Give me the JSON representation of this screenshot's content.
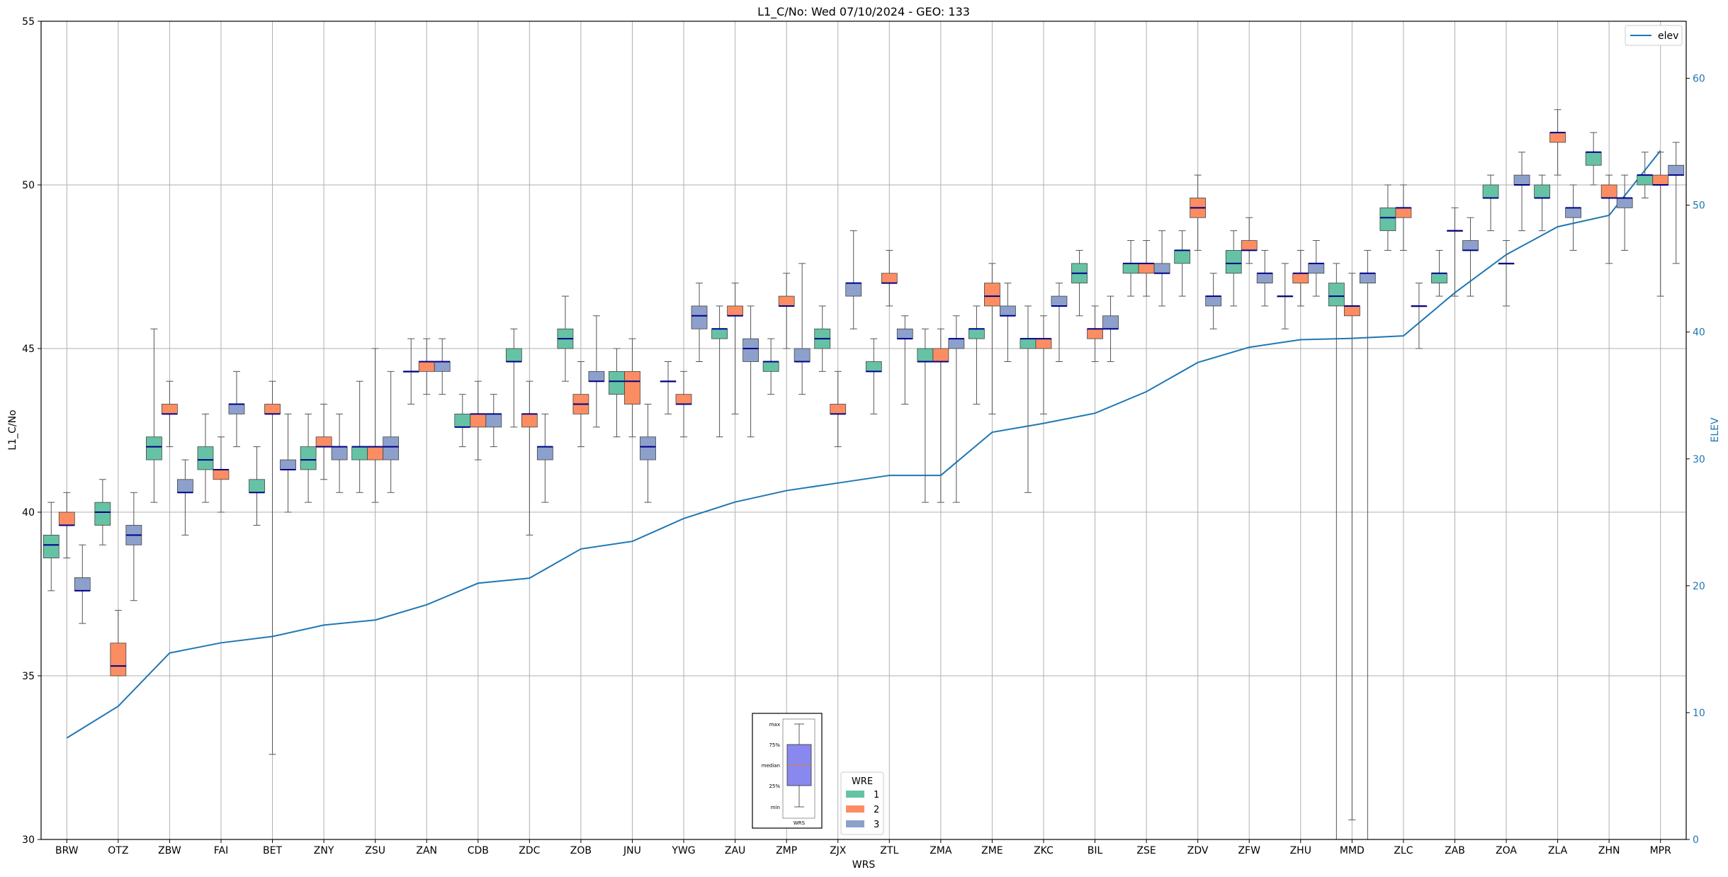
{
  "chart_data": {
    "type": "box",
    "title": "L1_C/No: Wed 07/10/2024 - GEO: 133",
    "xlabel": "WRS",
    "ylabel": "L1_C/No",
    "y2label": "ELEV",
    "ylim": [
      30,
      55
    ],
    "y2lim": [
      0,
      64.5
    ],
    "yticks": [
      30,
      35,
      40,
      45,
      50,
      55
    ],
    "y2ticks": [
      0,
      10,
      20,
      30,
      40,
      50,
      60
    ],
    "grid": true,
    "categories": [
      "BRW",
      "OTZ",
      "ZBW",
      "FAI",
      "BET",
      "ZNY",
      "ZSU",
      "ZAN",
      "CDB",
      "ZDC",
      "ZOB",
      "JNU",
      "YWG",
      "ZAU",
      "ZMP",
      "ZJX",
      "ZTL",
      "ZMA",
      "ZME",
      "ZKC",
      "BIL",
      "ZSE",
      "ZDV",
      "ZFW",
      "ZHU",
      "MMD",
      "ZLC",
      "ZAB",
      "ZOA",
      "ZLA",
      "ZHN",
      "MPR"
    ],
    "box_legend": {
      "title": "WRE",
      "entries": [
        {
          "label": "1",
          "color": "#66c2a5"
        },
        {
          "label": "2",
          "color": "#fc8d62"
        },
        {
          "label": "3",
          "color": "#8da0cb"
        }
      ]
    },
    "line_legend": {
      "label": "elev",
      "color": "#1f77b4"
    },
    "key_box": {
      "labels": [
        "max",
        "75%",
        "median",
        "25%",
        "min"
      ],
      "xlabel": "WRS",
      "color": "#8888ee"
    },
    "series": [
      {
        "name": "1",
        "boxes": [
          {
            "cat": "BRW",
            "min": 37.6,
            "q1": 38.6,
            "med": 39.0,
            "q3": 39.3,
            "max": 40.3
          },
          {
            "cat": "OTZ",
            "min": 39.0,
            "q1": 39.6,
            "med": 40.0,
            "q3": 40.3,
            "max": 41.0
          },
          {
            "cat": "ZBW",
            "min": 40.3,
            "q1": 41.6,
            "med": 42.0,
            "q3": 42.3,
            "max": 45.6
          },
          {
            "cat": "FAI",
            "min": 40.3,
            "q1": 41.3,
            "med": 41.6,
            "q3": 42.0,
            "max": 43.0
          },
          {
            "cat": "BET",
            "min": 39.6,
            "q1": 40.6,
            "med": 40.6,
            "q3": 41.0,
            "max": 42.0
          },
          {
            "cat": "ZNY",
            "min": 40.3,
            "q1": 41.3,
            "med": 41.6,
            "q3": 42.0,
            "max": 43.0
          },
          {
            "cat": "ZSU",
            "min": 40.6,
            "q1": 41.6,
            "med": 42.0,
            "q3": 42.0,
            "max": 44.0
          },
          {
            "cat": "ZAN",
            "min": 43.3,
            "q1": 44.3,
            "med": 44.3,
            "q3": 44.3,
            "max": 45.3
          },
          {
            "cat": "CDB",
            "min": 42.0,
            "q1": 42.6,
            "med": 42.6,
            "q3": 43.0,
            "max": 43.6
          },
          {
            "cat": "ZDC",
            "min": 42.6,
            "q1": 44.6,
            "med": 44.6,
            "q3": 45.0,
            "max": 45.6
          },
          {
            "cat": "ZOB",
            "min": 44.0,
            "q1": 45.0,
            "med": 45.3,
            "q3": 45.6,
            "max": 46.6
          },
          {
            "cat": "JNU",
            "min": 42.3,
            "q1": 43.6,
            "med": 44.0,
            "q3": 44.3,
            "max": 45.0
          },
          {
            "cat": "YWG",
            "min": 43.0,
            "q1": 44.0,
            "med": 44.0,
            "q3": 44.0,
            "max": 44.6
          },
          {
            "cat": "ZAU",
            "min": 42.3,
            "q1": 45.3,
            "med": 45.6,
            "q3": 45.6,
            "max": 46.3
          },
          {
            "cat": "ZMP",
            "min": 43.6,
            "q1": 44.3,
            "med": 44.6,
            "q3": 44.6,
            "max": 45.3
          },
          {
            "cat": "ZJX",
            "min": 44.3,
            "q1": 45.0,
            "med": 45.3,
            "q3": 45.6,
            "max": 46.3
          },
          {
            "cat": "ZTL",
            "min": 43.0,
            "q1": 44.3,
            "med": 44.3,
            "q3": 44.6,
            "max": 45.3
          },
          {
            "cat": "ZMA",
            "min": 40.3,
            "q1": 44.6,
            "med": 44.6,
            "q3": 45.0,
            "max": 45.6
          },
          {
            "cat": "ZME",
            "min": 43.3,
            "q1": 45.3,
            "med": 45.6,
            "q3": 45.6,
            "max": 46.3
          },
          {
            "cat": "ZKC",
            "min": 40.6,
            "q1": 45.0,
            "med": 45.3,
            "q3": 45.3,
            "max": 46.3
          },
          {
            "cat": "BIL",
            "min": 46.0,
            "q1": 47.0,
            "med": 47.3,
            "q3": 47.6,
            "max": 48.0
          },
          {
            "cat": "ZSE",
            "min": 46.6,
            "q1": 47.3,
            "med": 47.6,
            "q3": 47.6,
            "max": 48.3
          },
          {
            "cat": "ZDV",
            "min": 46.6,
            "q1": 47.6,
            "med": 48.0,
            "q3": 48.0,
            "max": 48.6
          },
          {
            "cat": "ZFW",
            "min": 46.3,
            "q1": 47.3,
            "med": 47.6,
            "q3": 48.0,
            "max": 48.6
          },
          {
            "cat": "ZHU",
            "min": 45.6,
            "q1": 46.6,
            "med": 46.6,
            "q3": 46.6,
            "max": 47.6
          },
          {
            "cat": "MMD",
            "min": 30.0,
            "q1": 46.3,
            "med": 46.6,
            "q3": 47.0,
            "max": 47.6
          },
          {
            "cat": "ZLC",
            "min": 48.0,
            "q1": 48.6,
            "med": 49.0,
            "q3": 49.3,
            "max": 50.0
          },
          {
            "cat": "ZAB",
            "min": 46.6,
            "q1": 47.0,
            "med": 47.3,
            "q3": 47.3,
            "max": 48.0
          },
          {
            "cat": "ZOA",
            "min": 48.6,
            "q1": 49.6,
            "med": 49.6,
            "q3": 50.0,
            "max": 50.3
          },
          {
            "cat": "ZLA",
            "min": 48.6,
            "q1": 49.6,
            "med": 49.6,
            "q3": 50.0,
            "max": 50.3
          },
          {
            "cat": "ZHN",
            "min": 50.0,
            "q1": 50.6,
            "med": 51.0,
            "q3": 51.0,
            "max": 51.6
          },
          {
            "cat": "MPR",
            "min": 49.6,
            "q1": 50.0,
            "med": 50.3,
            "q3": 50.3,
            "max": 51.0
          }
        ]
      },
      {
        "name": "2",
        "boxes": [
          {
            "cat": "BRW",
            "min": 38.6,
            "q1": 39.6,
            "med": 39.6,
            "q3": 40.0,
            "max": 40.6
          },
          {
            "cat": "OTZ",
            "min": 35.0,
            "q1": 35.0,
            "med": 35.3,
            "q3": 36.0,
            "max": 37.0
          },
          {
            "cat": "ZBW",
            "min": 42.0,
            "q1": 43.0,
            "med": 43.0,
            "q3": 43.3,
            "max": 44.0
          },
          {
            "cat": "FAI",
            "min": 40.0,
            "q1": 41.0,
            "med": 41.3,
            "q3": 41.3,
            "max": 42.3
          },
          {
            "cat": "BET",
            "min": 32.6,
            "q1": 43.0,
            "med": 43.0,
            "q3": 43.3,
            "max": 44.0
          },
          {
            "cat": "ZNY",
            "min": 41.0,
            "q1": 42.0,
            "med": 42.0,
            "q3": 42.3,
            "max": 43.3
          },
          {
            "cat": "ZSU",
            "min": 40.3,
            "q1": 41.6,
            "med": 42.0,
            "q3": 42.0,
            "max": 45.0
          },
          {
            "cat": "ZAN",
            "min": 43.6,
            "q1": 44.3,
            "med": 44.6,
            "q3": 44.6,
            "max": 45.3
          },
          {
            "cat": "CDB",
            "min": 41.6,
            "q1": 42.6,
            "med": 43.0,
            "q3": 43.0,
            "max": 44.0
          },
          {
            "cat": "ZDC",
            "min": 39.3,
            "q1": 42.6,
            "med": 43.0,
            "q3": 43.0,
            "max": 44.0
          },
          {
            "cat": "ZOB",
            "min": 42.0,
            "q1": 43.0,
            "med": 43.3,
            "q3": 43.6,
            "max": 44.6
          },
          {
            "cat": "JNU",
            "min": 42.3,
            "q1": 43.3,
            "med": 44.0,
            "q3": 44.3,
            "max": 45.3
          },
          {
            "cat": "YWG",
            "min": 42.3,
            "q1": 43.3,
            "med": 43.3,
            "q3": 43.6,
            "max": 44.3
          },
          {
            "cat": "ZAU",
            "min": 43.0,
            "q1": 46.0,
            "med": 46.0,
            "q3": 46.3,
            "max": 47.0
          },
          {
            "cat": "ZMP",
            "min": 45.0,
            "q1": 46.3,
            "med": 46.3,
            "q3": 46.6,
            "max": 47.3
          },
          {
            "cat": "ZJX",
            "min": 42.0,
            "q1": 43.0,
            "med": 43.0,
            "q3": 43.3,
            "max": 44.3
          },
          {
            "cat": "ZTL",
            "min": 46.3,
            "q1": 47.0,
            "med": 47.0,
            "q3": 47.3,
            "max": 48.0
          },
          {
            "cat": "ZMA",
            "min": 40.3,
            "q1": 44.6,
            "med": 44.6,
            "q3": 45.0,
            "max": 45.6
          },
          {
            "cat": "ZME",
            "min": 43.0,
            "q1": 46.3,
            "med": 46.6,
            "q3": 47.0,
            "max": 47.6
          },
          {
            "cat": "ZKC",
            "min": 43.0,
            "q1": 45.0,
            "med": 45.3,
            "q3": 45.3,
            "max": 46.0
          },
          {
            "cat": "BIL",
            "min": 44.6,
            "q1": 45.3,
            "med": 45.6,
            "q3": 45.6,
            "max": 46.3
          },
          {
            "cat": "ZSE",
            "min": 46.6,
            "q1": 47.3,
            "med": 47.6,
            "q3": 47.6,
            "max": 48.3
          },
          {
            "cat": "ZDV",
            "min": 48.0,
            "q1": 49.0,
            "med": 49.3,
            "q3": 49.6,
            "max": 50.3
          },
          {
            "cat": "ZFW",
            "min": 47.6,
            "q1": 48.0,
            "med": 48.0,
            "q3": 48.3,
            "max": 49.0
          },
          {
            "cat": "ZHU",
            "min": 46.3,
            "q1": 47.0,
            "med": 47.3,
            "q3": 47.3,
            "max": 48.0
          },
          {
            "cat": "MMD",
            "min": 30.6,
            "q1": 46.0,
            "med": 46.3,
            "q3": 46.3,
            "max": 47.3
          },
          {
            "cat": "ZLC",
            "min": 48.0,
            "q1": 49.0,
            "med": 49.3,
            "q3": 49.3,
            "max": 50.0
          },
          {
            "cat": "ZAB",
            "min": 46.6,
            "q1": 48.6,
            "med": 48.6,
            "q3": 48.6,
            "max": 49.3
          },
          {
            "cat": "ZOA",
            "min": 46.3,
            "q1": 47.6,
            "med": 47.6,
            "q3": 47.6,
            "max": 48.3
          },
          {
            "cat": "ZLA",
            "min": 50.3,
            "q1": 51.3,
            "med": 51.6,
            "q3": 51.6,
            "max": 52.3
          },
          {
            "cat": "ZHN",
            "min": 47.6,
            "q1": 49.6,
            "med": 49.6,
            "q3": 50.0,
            "max": 50.3
          },
          {
            "cat": "MPR",
            "min": 46.6,
            "q1": 50.0,
            "med": 50.0,
            "q3": 50.3,
            "max": 51.0
          }
        ]
      },
      {
        "name": "3",
        "boxes": [
          {
            "cat": "BRW",
            "min": 36.6,
            "q1": 37.6,
            "med": 37.6,
            "q3": 38.0,
            "max": 39.0
          },
          {
            "cat": "OTZ",
            "min": 37.3,
            "q1": 39.0,
            "med": 39.3,
            "q3": 39.6,
            "max": 40.6
          },
          {
            "cat": "ZBW",
            "min": 39.3,
            "q1": 40.6,
            "med": 40.6,
            "q3": 41.0,
            "max": 41.6
          },
          {
            "cat": "FAI",
            "min": 42.0,
            "q1": 43.0,
            "med": 43.3,
            "q3": 43.3,
            "max": 44.3
          },
          {
            "cat": "BET",
            "min": 40.0,
            "q1": 41.3,
            "med": 41.3,
            "q3": 41.6,
            "max": 43.0
          },
          {
            "cat": "ZNY",
            "min": 40.6,
            "q1": 41.6,
            "med": 42.0,
            "q3": 42.0,
            "max": 43.0
          },
          {
            "cat": "ZSU",
            "min": 40.6,
            "q1": 41.6,
            "med": 42.0,
            "q3": 42.3,
            "max": 44.3
          },
          {
            "cat": "ZAN",
            "min": 43.6,
            "q1": 44.3,
            "med": 44.6,
            "q3": 44.6,
            "max": 45.3
          },
          {
            "cat": "CDB",
            "min": 42.0,
            "q1": 42.6,
            "med": 43.0,
            "q3": 43.0,
            "max": 43.6
          },
          {
            "cat": "ZDC",
            "min": 40.3,
            "q1": 41.6,
            "med": 42.0,
            "q3": 42.0,
            "max": 43.0
          },
          {
            "cat": "ZOB",
            "min": 42.6,
            "q1": 44.0,
            "med": 44.0,
            "q3": 44.3,
            "max": 46.0
          },
          {
            "cat": "JNU",
            "min": 40.3,
            "q1": 41.6,
            "med": 42.0,
            "q3": 42.3,
            "max": 43.3
          },
          {
            "cat": "YWG",
            "min": 44.6,
            "q1": 45.6,
            "med": 46.0,
            "q3": 46.3,
            "max": 47.0
          },
          {
            "cat": "ZAU",
            "min": 42.3,
            "q1": 44.6,
            "med": 45.0,
            "q3": 45.3,
            "max": 46.3
          },
          {
            "cat": "ZMP",
            "min": 43.6,
            "q1": 44.6,
            "med": 44.6,
            "q3": 45.0,
            "max": 47.6
          },
          {
            "cat": "ZJX",
            "min": 45.6,
            "q1": 46.6,
            "med": 47.0,
            "q3": 47.0,
            "max": 48.6
          },
          {
            "cat": "ZTL",
            "min": 43.3,
            "q1": 45.3,
            "med": 45.3,
            "q3": 45.6,
            "max": 46.0
          },
          {
            "cat": "ZMA",
            "min": 40.3,
            "q1": 45.0,
            "med": 45.3,
            "q3": 45.3,
            "max": 46.0
          },
          {
            "cat": "ZME",
            "min": 44.6,
            "q1": 46.0,
            "med": 46.0,
            "q3": 46.3,
            "max": 47.0
          },
          {
            "cat": "ZKC",
            "min": 44.6,
            "q1": 46.3,
            "med": 46.3,
            "q3": 46.6,
            "max": 47.0
          },
          {
            "cat": "BIL",
            "min": 44.6,
            "q1": 45.6,
            "med": 45.6,
            "q3": 46.0,
            "max": 46.6
          },
          {
            "cat": "ZSE",
            "min": 46.3,
            "q1": 47.3,
            "med": 47.3,
            "q3": 47.6,
            "max": 48.6
          },
          {
            "cat": "ZDV",
            "min": 45.6,
            "q1": 46.3,
            "med": 46.6,
            "q3": 46.6,
            "max": 47.3
          },
          {
            "cat": "ZFW",
            "min": 46.3,
            "q1": 47.0,
            "med": 47.3,
            "q3": 47.3,
            "max": 48.0
          },
          {
            "cat": "ZHU",
            "min": 46.6,
            "q1": 47.3,
            "med": 47.6,
            "q3": 47.6,
            "max": 48.3
          },
          {
            "cat": "MMD",
            "min": 30.0,
            "q1": 47.0,
            "med": 47.3,
            "q3": 47.3,
            "max": 48.0
          },
          {
            "cat": "ZLC",
            "min": 45.0,
            "q1": 46.3,
            "med": 46.3,
            "q3": 46.3,
            "max": 47.0
          },
          {
            "cat": "ZAB",
            "min": 46.6,
            "q1": 48.0,
            "med": 48.0,
            "q3": 48.3,
            "max": 49.0
          },
          {
            "cat": "ZOA",
            "min": 48.6,
            "q1": 50.0,
            "med": 50.0,
            "q3": 50.3,
            "max": 51.0
          },
          {
            "cat": "ZLA",
            "min": 48.0,
            "q1": 49.0,
            "med": 49.3,
            "q3": 49.3,
            "max": 50.0
          },
          {
            "cat": "ZHN",
            "min": 48.0,
            "q1": 49.3,
            "med": 49.6,
            "q3": 49.6,
            "max": 50.3
          },
          {
            "cat": "MPR",
            "min": 47.6,
            "q1": 50.3,
            "med": 50.3,
            "q3": 50.6,
            "max": 51.3
          }
        ]
      }
    ],
    "elev": [
      8.0,
      10.5,
      14.7,
      15.5,
      16.0,
      16.9,
      17.3,
      18.5,
      20.2,
      20.6,
      22.9,
      23.5,
      25.3,
      26.6,
      27.5,
      28.1,
      28.7,
      28.7,
      32.1,
      32.8,
      33.6,
      35.3,
      37.6,
      38.8,
      39.4,
      39.5,
      39.7,
      43.1,
      46.1,
      48.3,
      49.2,
      54.3
    ]
  }
}
